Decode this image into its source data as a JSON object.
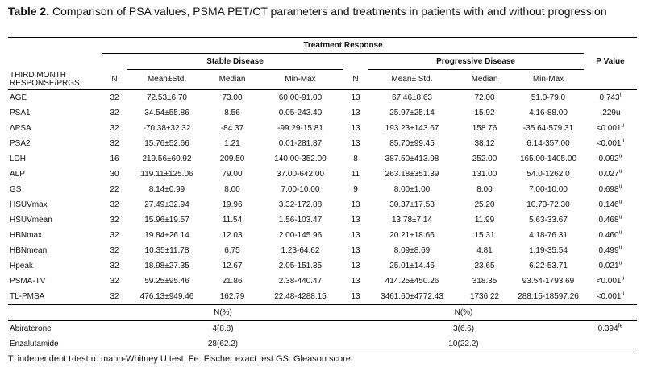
{
  "caption": {
    "label": "Table 2.",
    "text": "Comparison of PSA values, PSMA PET/CT parameters and treatments in patients with and without progression"
  },
  "headers": {
    "treatment_response": "Treatment Response",
    "stable": "Stable Disease",
    "progressive": "Progressive Disease",
    "p_value": "P Value",
    "row_label_1": "THIRD MONTH",
    "row_label_2": "RESPONSE/PRGS",
    "n": "N",
    "mean_std_stable": "Mean±Std.",
    "median": "Median",
    "minmax": "Min-Max",
    "mean_std_prog": "Mean± Std."
  },
  "rows": [
    {
      "name": "AGE",
      "n1": "32",
      "mean1": "72.53±6.70",
      "med1": "73.00",
      "mm1": "60.00-91.00",
      "n2": "13",
      "mean2": "67.46±8.63",
      "med2": "72.00",
      "mm2": "51.0-79.0",
      "p": "0.743",
      "sup": "t"
    },
    {
      "name": "PSA1",
      "n1": "32",
      "mean1": "34.54±55.86",
      "med1": "8.56",
      "mm1": "0.05-243.40",
      "n2": "13",
      "mean2": "25.97±25.14",
      "med2": "15.92",
      "mm2": "4.16-88.00",
      "p": ".229u",
      "sup": ""
    },
    {
      "name": "ΔPSA",
      "n1": "32",
      "mean1": "-70.38±32.32",
      "med1": "-84.37",
      "mm1": "-99.29-15.81",
      "n2": "13",
      "mean2": "193.23±143.67",
      "med2": "158.76",
      "mm2": "-35.64-579.31",
      "p": "<0.001",
      "sup": "u"
    },
    {
      "name": "PSA2",
      "n1": "32",
      "mean1": "15.76±52.66",
      "med1": "1.21",
      "mm1": "0.01-281.87",
      "n2": "13",
      "mean2": "85.70±99.45",
      "med2": "38.12",
      "mm2": "6.14-357.00",
      "p": "<0.001",
      "sup": "u"
    },
    {
      "name": "LDH",
      "n1": "16",
      "mean1": "219.56±60.92",
      "med1": "209.50",
      "mm1": "140.00-352.00",
      "n2": "8",
      "mean2": "387.50±413.98",
      "med2": "252.00",
      "mm2": "165.00-1405.00",
      "p": "0.092",
      "sup": "u"
    },
    {
      "name": "ALP",
      "n1": "30",
      "mean1": "119.11±125.06",
      "med1": "79.00",
      "mm1": "37.00-642.00",
      "n2": "11",
      "mean2": "263.18±351.39",
      "med2": "131.00",
      "mm2": "54.0-1262.0",
      "p": "0.027",
      "sup": "u"
    },
    {
      "name": "GS",
      "n1": "22",
      "mean1": "8.14±0.99",
      "med1": "8.00",
      "mm1": "7.00-10.00",
      "n2": "9",
      "mean2": "8.00±1.00",
      "med2": "8.00",
      "mm2": "7.00-10.00",
      "p": "0.698",
      "sup": "u"
    },
    {
      "name": "HSUVmax",
      "n1": "32",
      "mean1": "27.49±32.94",
      "med1": "19.96",
      "mm1": "3.32-172.88",
      "n2": "13",
      "mean2": "30.37±17.53",
      "med2": "25.20",
      "mm2": "10.73-72.30",
      "p": "0.146",
      "sup": "u"
    },
    {
      "name": "HSUVmean",
      "n1": "32",
      "mean1": "15.96±19.57",
      "med1": "11.54",
      "mm1": "1.56-103.47",
      "n2": "13",
      "mean2": "13.78±7.14",
      "med2": "11.99",
      "mm2": "5.63-33.67",
      "p": "0.468",
      "sup": "u"
    },
    {
      "name": "HBNmax",
      "n1": "32",
      "mean1": "19.84±26.14",
      "med1": "12.03",
      "mm1": "2.00-145.96",
      "n2": "13",
      "mean2": "20.21±18.66",
      "med2": "15.31",
      "mm2": "4.18-76.31",
      "p": "0.460",
      "sup": "u"
    },
    {
      "name": "HBNmean",
      "n1": "32",
      "mean1": "10.35±11.78",
      "med1": "6.75",
      "mm1": "1.23-64.62",
      "n2": "13",
      "mean2": "8.09±8.69",
      "med2": "4.81",
      "mm2": "1.19-35.54",
      "p": "0.499",
      "sup": "u"
    },
    {
      "name": "Hpeak",
      "n1": "32",
      "mean1": "18.98±27.35",
      "med1": "12.67",
      "mm1": "2.05-151.35",
      "n2": "13",
      "mean2": "25.01±14.46",
      "med2": "23.65",
      "mm2": "6.22-53.71",
      "p": "0.021",
      "sup": "u"
    },
    {
      "name": "PSMA-TV",
      "n1": "32",
      "mean1": "59.25±95.46",
      "med1": "21.86",
      "mm1": "2.38-440.47",
      "n2": "13",
      "mean2": "414.25±450.26",
      "med2": "318.35",
      "mm2": "93.54-1793.69",
      "p": "<0.001",
      "sup": "u"
    },
    {
      "name": "TL-PMSA",
      "n1": "32",
      "mean1": "476.13±949.46",
      "med1": "162.79",
      "mm1": "22.48-4288.15",
      "n2": "13",
      "mean2": "3461.60±4772.43",
      "med2": "1736.22",
      "mm2": "288.15-18597.26",
      "p": "<0.001",
      "sup": "u"
    }
  ],
  "npct": {
    "stable": "N(%)",
    "prog": "N(%)"
  },
  "treatments": [
    {
      "name": "Abiraterone",
      "stable": "4(8.8)",
      "prog": "3(6.6)",
      "p": "0.394",
      "sup": "fe"
    },
    {
      "name": "Enzalutamide",
      "stable": "28(62.2)",
      "prog": "10(22.2)",
      "p": "",
      "sup": ""
    }
  ],
  "footnote": "T: independent t-test  u: mann-Whitney U test, Fe: Fischer exact test  GS: Gleason score"
}
